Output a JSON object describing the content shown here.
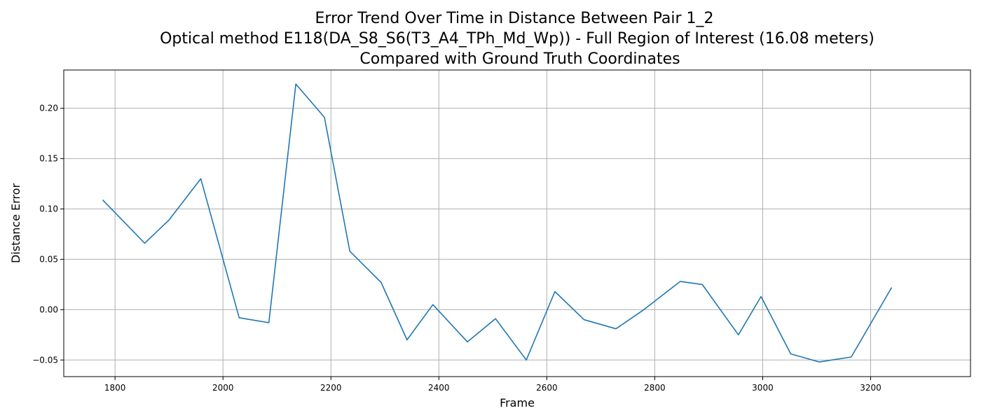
{
  "chart_data": {
    "type": "line",
    "title_lines": [
      "Error Trend Over Time in Distance Between Pair 1_2",
      "Optical method E118(DA_S8_S6(T3_A4_TPh_Md_Wp)) - Full Region of Interest (16.08 meters)",
      "Compared with Ground Truth Coordinates"
    ],
    "xlabel": "Frame",
    "ylabel": "Distance Error",
    "xlim": [
      1705,
      3385
    ],
    "ylim": [
      -0.0665,
      0.238
    ],
    "xticks": [
      1800,
      2000,
      2200,
      2400,
      2600,
      2800,
      3000,
      3200
    ],
    "yticks": [
      -0.05,
      0.0,
      0.05,
      0.1,
      0.15,
      0.2
    ],
    "ytick_labels": [
      "−0.05",
      "0.00",
      "0.05",
      "0.10",
      "0.15",
      "0.20"
    ],
    "grid": true,
    "series": [
      {
        "color": "#1f77b4",
        "x": [
          1777,
          1855,
          1900,
          1959,
          2030,
          2085,
          2135,
          2188,
          2235,
          2293,
          2341,
          2389,
          2453,
          2505,
          2562,
          2615,
          2669,
          2728,
          2780,
          2847,
          2888,
          2955,
          2997,
          3052,
          3105,
          3164,
          3239
        ],
        "y": [
          0.109,
          0.066,
          0.089,
          0.13,
          -0.008,
          -0.013,
          0.224,
          0.191,
          0.058,
          0.027,
          -0.03,
          0.005,
          -0.032,
          -0.009,
          -0.05,
          0.018,
          -0.01,
          -0.019,
          0.0,
          0.028,
          0.025,
          -0.025,
          0.013,
          -0.044,
          -0.052,
          -0.047,
          0.022
        ]
      }
    ]
  }
}
